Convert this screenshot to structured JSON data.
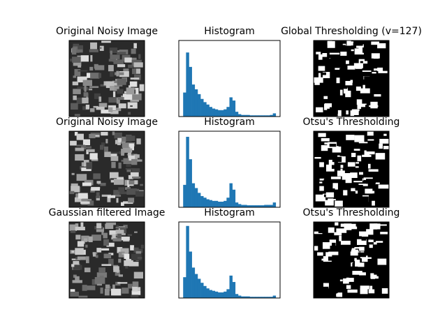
{
  "chart_data": [
    {
      "type": "image",
      "title": "Original Noisy Image",
      "style": "gray"
    },
    {
      "type": "histogram",
      "title": "Histogram",
      "color": "#1f77b4",
      "xlim": [
        -12,
        268
      ],
      "ylim": [
        0,
        95
      ],
      "bins": [
        0,
        8,
        16,
        24,
        32,
        40,
        48,
        56,
        64,
        72,
        80,
        88,
        96,
        104,
        112,
        120,
        128,
        136,
        144,
        152,
        160,
        168,
        176,
        184,
        192,
        200,
        208,
        216,
        224,
        232,
        240,
        248,
        256
      ],
      "values": [
        30,
        80,
        62,
        40,
        34,
        28,
        22,
        18,
        15,
        12,
        10,
        9,
        8,
        8,
        9,
        12,
        24,
        20,
        6,
        3,
        2,
        2,
        2,
        1.5,
        1.5,
        1.5,
        1.5,
        1.5,
        1.5,
        1.5,
        2,
        4
      ]
    },
    {
      "type": "image",
      "title": "Global Thresholding (v=127)",
      "style": "binary"
    },
    {
      "type": "image",
      "title": "Original Noisy Image",
      "style": "gray"
    },
    {
      "type": "histogram",
      "title": "Histogram",
      "color": "#1f77b4",
      "xlim": [
        -12,
        268
      ],
      "ylim": [
        0,
        95
      ],
      "bins": [
        0,
        8,
        16,
        24,
        32,
        40,
        48,
        56,
        64,
        72,
        80,
        88,
        96,
        104,
        112,
        120,
        128,
        136,
        144,
        152,
        160,
        168,
        176,
        184,
        192,
        200,
        208,
        216,
        224,
        232,
        240,
        248,
        256
      ],
      "values": [
        28,
        88,
        60,
        30,
        24,
        18,
        14,
        12,
        10,
        9,
        8,
        8,
        7,
        7,
        8,
        12,
        30,
        22,
        6,
        4,
        3,
        3,
        2.5,
        2.5,
        2.5,
        2.5,
        2.5,
        2.5,
        3,
        3,
        3,
        6
      ]
    },
    {
      "type": "image",
      "title": "Otsu's Thresholding",
      "style": "binary"
    },
    {
      "type": "image",
      "title": "Gaussian filtered Image",
      "style": "gray"
    },
    {
      "type": "histogram",
      "title": "Histogram",
      "color": "#1f77b4",
      "xlim": [
        -12,
        268
      ],
      "ylim": [
        0,
        95
      ],
      "bins": [
        0,
        8,
        16,
        24,
        32,
        40,
        48,
        56,
        64,
        72,
        80,
        88,
        96,
        104,
        112,
        120,
        128,
        136,
        144,
        152,
        160,
        168,
        176,
        184,
        192,
        200,
        208,
        216,
        224,
        232,
        240,
        248,
        256
      ],
      "values": [
        26,
        90,
        58,
        38,
        30,
        24,
        19,
        15,
        12,
        10,
        9,
        8,
        7,
        7,
        8,
        11,
        28,
        20,
        5,
        3,
        2,
        2,
        2,
        1.5,
        1.5,
        1.5,
        1.5,
        1.5,
        1.5,
        1.5,
        1.5,
        3
      ]
    },
    {
      "type": "image",
      "title": "Otsu's Thresholding",
      "style": "binary"
    }
  ]
}
